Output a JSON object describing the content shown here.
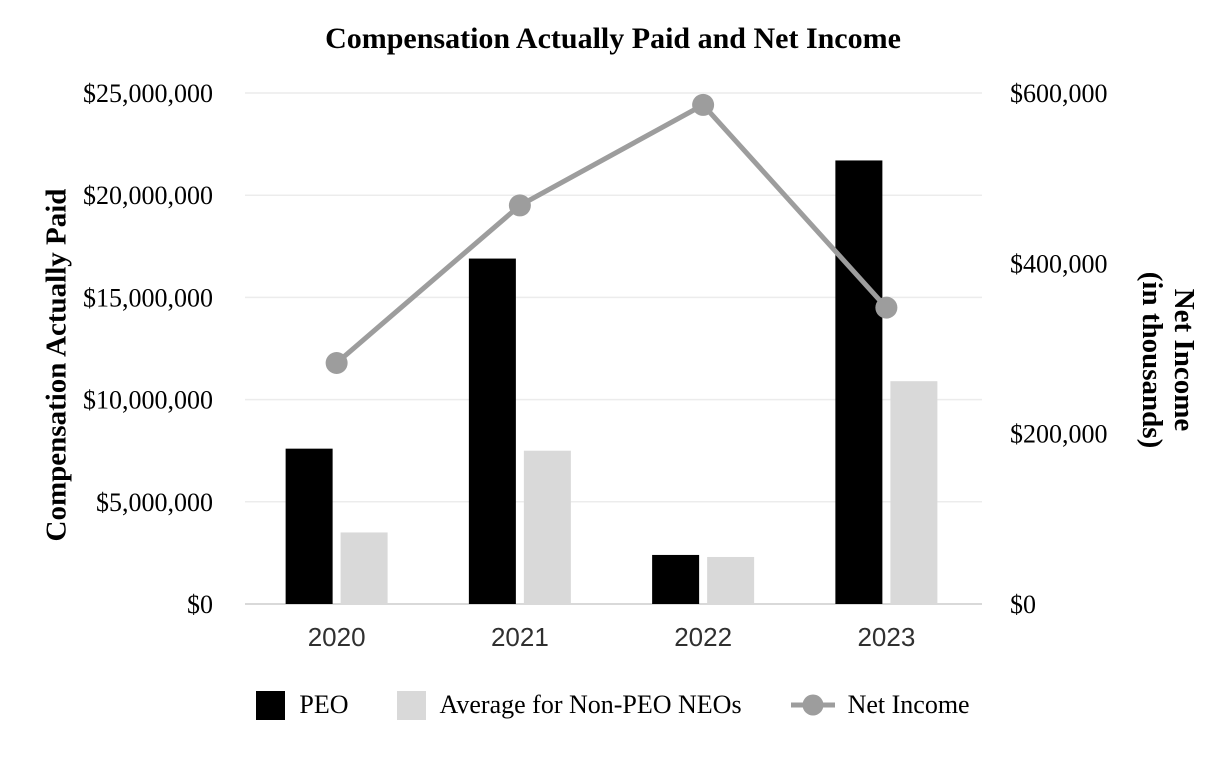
{
  "chart_data": {
    "type": "combo-bar-line",
    "title": "Compensation Actually Paid and Net Income",
    "categories": [
      "2020",
      "2021",
      "2022",
      "2023"
    ],
    "series": [
      {
        "name": "PEO",
        "type": "bar",
        "axis": "left",
        "color": "#000000",
        "values": [
          7600000,
          16900000,
          2400000,
          21700000
        ]
      },
      {
        "name": "Average for Non-PEO NEOs",
        "type": "bar",
        "axis": "left",
        "color": "#d9d9d9",
        "values": [
          3500000,
          7500000,
          2300000,
          10900000
        ]
      },
      {
        "name": "Net Income",
        "type": "line",
        "axis": "right",
        "color": "#9d9d9d",
        "values": [
          283000,
          468000,
          586000,
          348000
        ]
      }
    ],
    "y_left": {
      "title": "Compensation Actually Paid",
      "min": 0,
      "max": 25000000,
      "tick_values": [
        0,
        5000000,
        10000000,
        15000000,
        20000000,
        25000000
      ],
      "tick_labels": [
        "$0",
        "$5,000,000",
        "$10,000,000",
        "$15,000,000",
        "$20,000,000",
        "$25,000,000"
      ]
    },
    "y_right": {
      "title_line1": "Net Income",
      "title_line2": "(in thousands)",
      "min": 0,
      "max": 600000,
      "tick_values": [
        0,
        200000,
        400000,
        600000
      ],
      "tick_labels": [
        "$0",
        "$200,000",
        "$400,000",
        "$600,000"
      ]
    },
    "legend": {
      "position": "bottom",
      "items": [
        {
          "label": "PEO",
          "swatch": "square",
          "color": "#000000"
        },
        {
          "label": "Average for Non-PEO NEOs",
          "swatch": "square",
          "color": "#d9d9d9"
        },
        {
          "label": "Net Income",
          "swatch": "line-marker",
          "color": "#9d9d9d"
        }
      ]
    },
    "grid": {
      "on": true,
      "color": "#ececec",
      "axis_line_color": "#d9d9d9",
      "x_tick_color": "#303030"
    }
  }
}
